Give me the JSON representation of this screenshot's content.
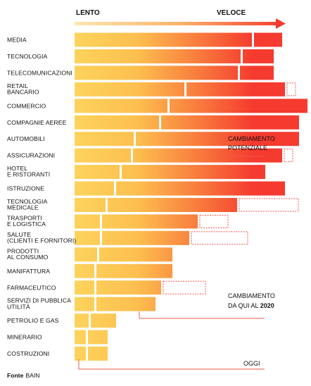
{
  "chart_data": {
    "type": "bar",
    "header_left": "LENTO",
    "header_right": "VELOCE",
    "series": [
      {
        "key": "today",
        "label": "OGGI"
      },
      {
        "key": "to2020",
        "label_line1": "CAMBIAMENTO",
        "label_line2_prefix": "DA QUI AL ",
        "label_line2_bold": "2020"
      },
      {
        "key": "potential",
        "label_line1": "CAMBIAMENTO",
        "label_line2": "POTENZIALE"
      }
    ],
    "categories": [
      {
        "lines": [
          "MEDIA"
        ],
        "today": 0.63,
        "to2020": 0.1,
        "potential": 0
      },
      {
        "lines": [
          "TECNOLOGIA"
        ],
        "today": 0.59,
        "to2020": 0.11,
        "potential": 0
      },
      {
        "lines": [
          "TELECOMUNICAZIONI"
        ],
        "today": 0.58,
        "to2020": 0.12,
        "potential": 0
      },
      {
        "lines": [
          "RETAIL",
          "BANCARIO"
        ],
        "today": 0.39,
        "to2020": 0.35,
        "potential": 0.03
      },
      {
        "lines": [
          "COMMERCIO"
        ],
        "today": 0.33,
        "to2020": 0.49,
        "potential": 0
      },
      {
        "lines": [
          "COMPAGNIE AEREE"
        ],
        "today": 0.3,
        "to2020": 0.49,
        "potential": 0
      },
      {
        "lines": [
          "AUTOMOBILI"
        ],
        "today": 0.21,
        "to2020": 0.58,
        "potential": 0
      },
      {
        "lines": [
          "ASSICURAZIONI"
        ],
        "today": 0.2,
        "to2020": 0.53,
        "potential": 0.03
      },
      {
        "lines": [
          "HOTEL",
          "E RISTORANTI"
        ],
        "today": 0.16,
        "to2020": 0.51,
        "potential": 0
      },
      {
        "lines": [
          "ISTRUZIONE"
        ],
        "today": 0.14,
        "to2020": 0.6,
        "potential": 0
      },
      {
        "lines": [
          "TECNOLOGIA",
          "MEDICALE"
        ],
        "today": 0.11,
        "to2020": 0.46,
        "potential": 0.21
      },
      {
        "lines": [
          "TRASPORTI",
          "E LOGISTICA"
        ],
        "today": 0.09,
        "to2020": 0.34,
        "potential": 0.1
      },
      {
        "lines": [
          "SALUTE",
          "(CLIENTI E FORNITORI)"
        ],
        "today": 0.09,
        "to2020": 0.31,
        "potential": 0.2
      },
      {
        "lines": [
          "PRODOTTI",
          "AL CONSUMO"
        ],
        "today": 0.08,
        "to2020": 0.26,
        "potential": 0
      },
      {
        "lines": [
          "MANIFATTURA"
        ],
        "today": 0.07,
        "to2020": 0.27,
        "potential": 0
      },
      {
        "lines": [
          "FARMACEUTICO"
        ],
        "today": 0.07,
        "to2020": 0.23,
        "potential": 0.15
      },
      {
        "lines": [
          "SERVIZI DI PUBBLICA",
          "UTILITÀ"
        ],
        "today": 0.07,
        "to2020": 0.21,
        "potential": 0
      },
      {
        "lines": [
          "PETROLIO E GAS"
        ],
        "today": 0.05,
        "to2020": 0.09,
        "potential": 0
      },
      {
        "lines": [
          "MINERARIO"
        ],
        "today": 0.04,
        "to2020": 0.07,
        "potential": 0
      },
      {
        "lines": [
          "COSTRUZIONI"
        ],
        "today": 0.04,
        "to2020": 0.07,
        "potential": 0
      }
    ],
    "colors": {
      "low": "#fdd35c",
      "high": "#f53a2f",
      "potential": "#f0554c",
      "connector": "#f0554c"
    },
    "source_label": "Fonte",
    "source_name": "BAIN"
  }
}
